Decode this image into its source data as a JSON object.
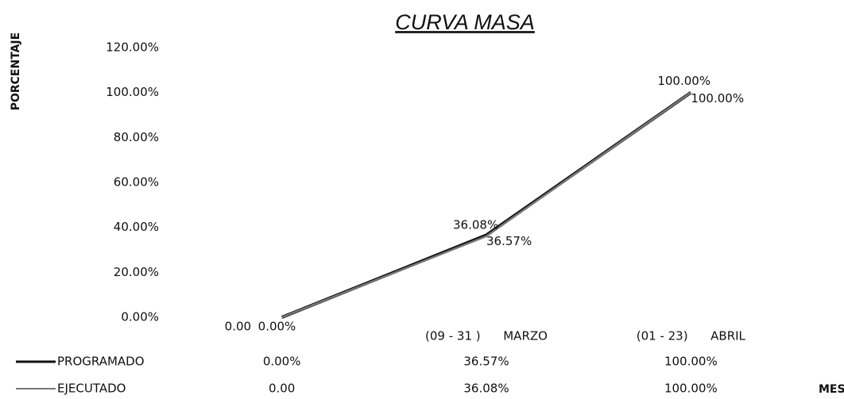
{
  "chart_data": {
    "type": "line",
    "title": "CURVA MASA",
    "y_label": "PORCENTAJE",
    "x_label": "MESES",
    "categories": [
      null,
      "(09 - 31 )      MARZO",
      "(01 - 23)      ABRIL"
    ],
    "series": [
      {
        "name": "PROGRAMADO",
        "color": "#111111",
        "values": [
          0,
          36.57,
          100
        ],
        "value_labels": [
          "0.00%",
          "36.57%",
          "100.00%"
        ]
      },
      {
        "name": "EJECUTADO",
        "color": "#777777",
        "values": [
          0,
          36.08,
          100
        ],
        "value_labels": [
          "0.00",
          "36.08%",
          "100.00%"
        ]
      }
    ],
    "ylim": [
      0,
      120
    ],
    "yticks": [
      {
        "value": 0,
        "label": "0.00%"
      },
      {
        "value": 20,
        "label": "20.00%"
      },
      {
        "value": 40,
        "label": "40.00%"
      },
      {
        "value": 60,
        "label": "60.00%"
      },
      {
        "value": 80,
        "label": "80.00%"
      },
      {
        "value": 100,
        "label": "100.00%"
      },
      {
        "value": 120,
        "label": "120.00%"
      }
    ],
    "grid": false
  }
}
